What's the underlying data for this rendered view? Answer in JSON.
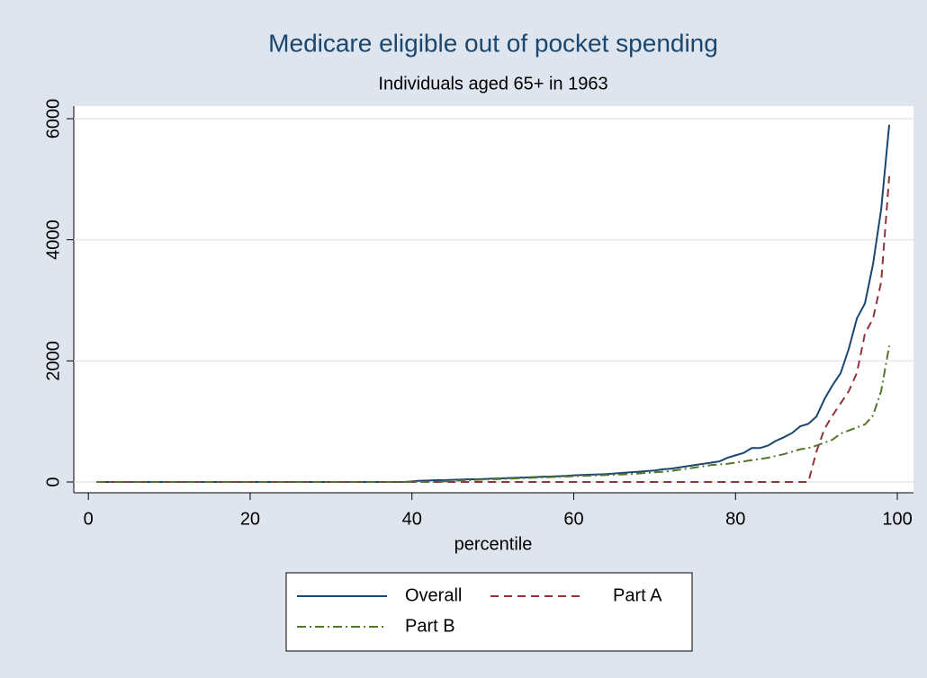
{
  "chart_data": {
    "type": "line",
    "title": "Medicare eligible out of pocket spending",
    "subtitle": "Individuals aged 65+ in 1963",
    "x_label": "percentile",
    "x": [
      1,
      2,
      3,
      4,
      5,
      6,
      7,
      8,
      9,
      10,
      11,
      12,
      13,
      14,
      15,
      16,
      17,
      18,
      19,
      20,
      21,
      22,
      23,
      24,
      25,
      26,
      27,
      28,
      29,
      30,
      31,
      32,
      33,
      34,
      35,
      36,
      37,
      38,
      39,
      40,
      41,
      42,
      43,
      44,
      45,
      46,
      47,
      48,
      49,
      50,
      51,
      52,
      53,
      54,
      55,
      56,
      57,
      58,
      59,
      60,
      61,
      62,
      63,
      64,
      65,
      66,
      67,
      68,
      69,
      70,
      71,
      72,
      73,
      74,
      75,
      76,
      77,
      78,
      79,
      80,
      81,
      82,
      83,
      84,
      85,
      86,
      87,
      88,
      89,
      90,
      91,
      92,
      93,
      94,
      95,
      96,
      97,
      98,
      99
    ],
    "series": [
      {
        "name": "Overall",
        "color": "#1a476f",
        "dash": "none",
        "values": [
          0,
          0,
          0,
          0,
          0,
          0,
          0,
          0,
          0,
          0,
          0,
          0,
          0,
          0,
          0,
          0,
          0,
          0,
          0,
          0,
          0,
          0,
          0,
          0,
          0,
          0,
          0,
          0,
          0,
          0,
          0,
          0,
          0,
          0,
          0,
          0,
          0,
          0,
          0,
          10,
          20,
          25,
          30,
          30,
          35,
          40,
          45,
          45,
          50,
          55,
          60,
          65,
          70,
          75,
          80,
          85,
          90,
          95,
          100,
          110,
          115,
          120,
          125,
          130,
          140,
          150,
          160,
          170,
          180,
          190,
          210,
          220,
          240,
          260,
          280,
          300,
          320,
          340,
          400,
          440,
          480,
          560,
          560,
          600,
          680,
          740,
          810,
          920,
          960,
          1080,
          1370,
          1600,
          1800,
          2200,
          2700,
          2950,
          3600,
          4500,
          5900
        ]
      },
      {
        "name": "Part A",
        "color": "#90353b",
        "dash": "9 6",
        "values": [
          0,
          0,
          0,
          0,
          0,
          0,
          0,
          0,
          0,
          0,
          0,
          0,
          0,
          0,
          0,
          0,
          0,
          0,
          0,
          0,
          0,
          0,
          0,
          0,
          0,
          0,
          0,
          0,
          0,
          0,
          0,
          0,
          0,
          0,
          0,
          0,
          0,
          0,
          0,
          0,
          0,
          0,
          0,
          0,
          0,
          0,
          0,
          0,
          0,
          0,
          0,
          0,
          0,
          0,
          0,
          0,
          0,
          0,
          0,
          0,
          0,
          0,
          0,
          0,
          0,
          0,
          0,
          0,
          0,
          0,
          0,
          0,
          0,
          0,
          0,
          0,
          0,
          0,
          0,
          0,
          0,
          0,
          0,
          0,
          0,
          0,
          0,
          0,
          0,
          500,
          880,
          1100,
          1300,
          1500,
          1800,
          2450,
          2700,
          3300,
          5050
        ]
      },
      {
        "name": "Part B",
        "color": "#55752f",
        "dash": "10 4 2 4",
        "values": [
          0,
          0,
          0,
          0,
          0,
          0,
          0,
          0,
          0,
          0,
          0,
          0,
          0,
          0,
          0,
          0,
          0,
          0,
          0,
          0,
          0,
          0,
          0,
          0,
          0,
          0,
          0,
          0,
          0,
          0,
          0,
          0,
          0,
          0,
          0,
          0,
          0,
          0,
          0,
          0,
          0,
          0,
          0,
          10,
          20,
          25,
          30,
          35,
          40,
          45,
          50,
          55,
          60,
          65,
          70,
          75,
          80,
          85,
          90,
          95,
          100,
          105,
          110,
          115,
          120,
          125,
          130,
          140,
          150,
          160,
          170,
          180,
          200,
          220,
          240,
          260,
          280,
          290,
          300,
          320,
          340,
          360,
          380,
          400,
          430,
          460,
          500,
          540,
          560,
          600,
          650,
          700,
          800,
          850,
          900,
          950,
          1100,
          1500,
          2250
        ]
      }
    ],
    "xlim": [
      -1.8,
      102
    ],
    "ylim": [
      -178,
      6208
    ],
    "xticks": [
      0,
      20,
      40,
      60,
      80,
      100
    ],
    "yticks": [
      0,
      2000,
      4000,
      6000
    ],
    "grid": true
  }
}
